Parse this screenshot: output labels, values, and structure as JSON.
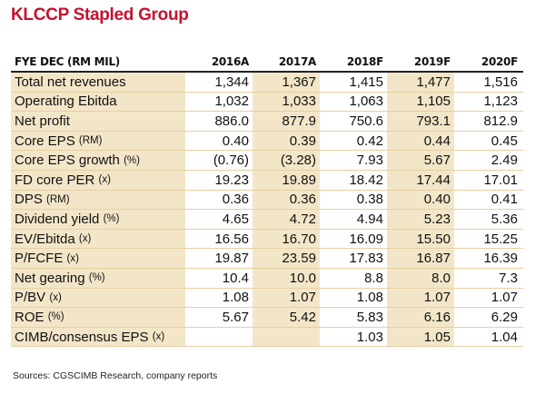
{
  "title": "KLCCP Stapled Group",
  "header": {
    "label": "FYE DEC (RM MIL)",
    "years": [
      "2016A",
      "2017A",
      "2018F",
      "2019F",
      "2020F"
    ]
  },
  "rows": [
    {
      "label": "Total net revenues",
      "unit": "",
      "values": [
        "1,344",
        "1,367",
        "1,415",
        "1,477",
        "1,516"
      ]
    },
    {
      "label": "Operating Ebitda",
      "unit": "",
      "values": [
        "1,032",
        "1,033",
        "1,063",
        "1,105",
        "1,123"
      ]
    },
    {
      "label": "Net profit",
      "unit": "",
      "values": [
        "886.0",
        "877.9",
        "750.6",
        "793.1",
        "812.9"
      ]
    },
    {
      "label": "Core EPS",
      "unit": "(RM)",
      "values": [
        "0.40",
        "0.39",
        "0.42",
        "0.44",
        "0.45"
      ]
    },
    {
      "label": "Core EPS growth",
      "unit": "(%)",
      "values": [
        "(0.76)",
        "(3.28)",
        "7.93",
        "5.67",
        "2.49"
      ]
    },
    {
      "label": "FD core PER",
      "unit": "(x)",
      "values": [
        "19.23",
        "19.89",
        "18.42",
        "17.44",
        "17.01"
      ]
    },
    {
      "label": "DPS",
      "unit": "(RM)",
      "values": [
        "0.36",
        "0.36",
        "0.38",
        "0.40",
        "0.41"
      ]
    },
    {
      "label": "Dividend yield",
      "unit": "(%)",
      "values": [
        "4.65",
        "4.72",
        "4.94",
        "5.23",
        "5.36"
      ]
    },
    {
      "label": "EV/Ebitda",
      "unit": "(x)",
      "values": [
        "16.56",
        "16.70",
        "16.09",
        "15.50",
        "15.25"
      ]
    },
    {
      "label": "P/FCFE",
      "unit": "(x)",
      "values": [
        "19.87",
        "23.59",
        "17.83",
        "16.87",
        "16.39"
      ]
    },
    {
      "label": "Net gearing",
      "unit": "(%)",
      "values": [
        "10.4",
        "10.0",
        "8.8",
        "8.0",
        "7.3"
      ]
    },
    {
      "label": "P/BV",
      "unit": "(x)",
      "values": [
        "1.08",
        "1.07",
        "1.08",
        "1.07",
        "1.07"
      ]
    },
    {
      "label": "ROE",
      "unit": "(%)",
      "values": [
        "5.67",
        "5.42",
        "5.83",
        "6.16",
        "6.29"
      ]
    },
    {
      "label": "CIMB/consensus EPS",
      "unit": "(x)",
      "values": [
        "",
        "",
        "1.03",
        "1.05",
        "1.04"
      ]
    }
  ],
  "source": "Sources: CGSCIMB Research, company reports",
  "colors": {
    "title": "#c8102e",
    "shade": "#f3e6c8"
  }
}
